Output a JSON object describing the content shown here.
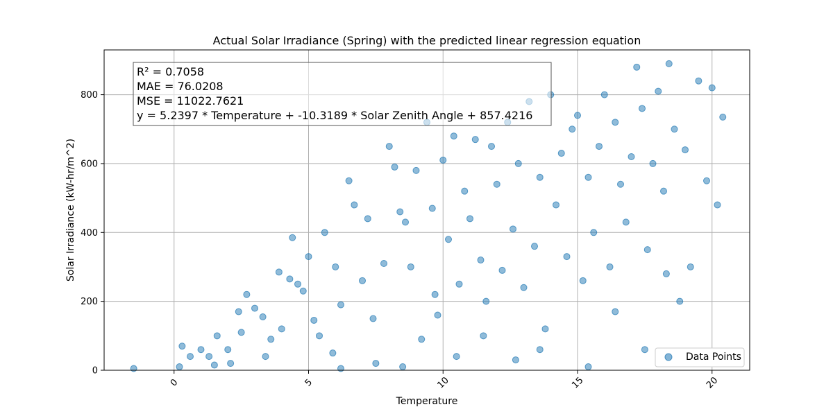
{
  "chart_data": {
    "type": "scatter",
    "title": "Actual Solar Irradiance (Spring) with the predicted linear regression equation",
    "xlabel": "Temperature",
    "ylabel": "Solar Irradiance (kW-hr/m^2)",
    "xlim": [
      -2.6,
      21.4
    ],
    "ylim": [
      0,
      930
    ],
    "xticks": [
      "0",
      "5",
      "10",
      "15",
      "20"
    ],
    "yticks": [
      "0",
      "200",
      "400",
      "600",
      "800"
    ],
    "grid": true,
    "legend_position": "bottom-right",
    "series": [
      {
        "name": "Data Points",
        "color": "#1f77b4",
        "points": [
          [
            -1.5,
            5
          ],
          [
            0.2,
            10
          ],
          [
            0.3,
            70
          ],
          [
            0.6,
            40
          ],
          [
            1.0,
            60
          ],
          [
            1.3,
            40
          ],
          [
            1.5,
            15
          ],
          [
            1.6,
            100
          ],
          [
            2.0,
            60
          ],
          [
            2.1,
            20
          ],
          [
            2.4,
            170
          ],
          [
            2.5,
            110
          ],
          [
            2.7,
            220
          ],
          [
            3.0,
            180
          ],
          [
            3.3,
            155
          ],
          [
            3.6,
            90
          ],
          [
            3.9,
            285
          ],
          [
            4.0,
            120
          ],
          [
            4.3,
            265
          ],
          [
            4.4,
            385
          ],
          [
            4.6,
            250
          ],
          [
            4.8,
            230
          ],
          [
            5.0,
            330
          ],
          [
            5.2,
            145
          ],
          [
            5.4,
            100
          ],
          [
            5.6,
            400
          ],
          [
            5.9,
            50
          ],
          [
            6.0,
            300
          ],
          [
            6.2,
            190
          ],
          [
            6.5,
            550
          ],
          [
            6.7,
            480
          ],
          [
            7.0,
            260
          ],
          [
            7.2,
            440
          ],
          [
            7.5,
            20
          ],
          [
            7.8,
            310
          ],
          [
            8.0,
            650
          ],
          [
            8.2,
            590
          ],
          [
            8.4,
            460
          ],
          [
            8.6,
            430
          ],
          [
            8.8,
            300
          ],
          [
            9.0,
            580
          ],
          [
            9.2,
            90
          ],
          [
            9.4,
            720
          ],
          [
            9.6,
            470
          ],
          [
            9.8,
            160
          ],
          [
            10.0,
            610
          ],
          [
            10.2,
            380
          ],
          [
            10.4,
            680
          ],
          [
            10.6,
            250
          ],
          [
            10.8,
            520
          ],
          [
            11.0,
            440
          ],
          [
            11.2,
            670
          ],
          [
            11.4,
            320
          ],
          [
            11.6,
            200
          ],
          [
            11.8,
            650
          ],
          [
            12.0,
            540
          ],
          [
            12.2,
            290
          ],
          [
            12.4,
            720
          ],
          [
            12.6,
            410
          ],
          [
            12.8,
            600
          ],
          [
            13.0,
            240
          ],
          [
            13.2,
            780
          ],
          [
            13.4,
            360
          ],
          [
            13.6,
            560
          ],
          [
            13.8,
            120
          ],
          [
            14.0,
            800
          ],
          [
            14.2,
            480
          ],
          [
            14.4,
            630
          ],
          [
            14.6,
            330
          ],
          [
            14.8,
            700
          ],
          [
            15.0,
            740
          ],
          [
            15.2,
            260
          ],
          [
            15.4,
            560
          ],
          [
            15.6,
            400
          ],
          [
            15.8,
            650
          ],
          [
            16.0,
            800
          ],
          [
            16.2,
            300
          ],
          [
            16.4,
            720
          ],
          [
            16.6,
            540
          ],
          [
            16.8,
            430
          ],
          [
            17.0,
            620
          ],
          [
            17.2,
            880
          ],
          [
            17.4,
            760
          ],
          [
            17.6,
            350
          ],
          [
            17.8,
            600
          ],
          [
            18.0,
            810
          ],
          [
            18.2,
            520
          ],
          [
            18.4,
            890
          ],
          [
            18.6,
            700
          ],
          [
            18.8,
            200
          ],
          [
            19.0,
            640
          ],
          [
            19.2,
            300
          ],
          [
            19.5,
            840
          ],
          [
            19.8,
            550
          ],
          [
            20.0,
            820
          ],
          [
            20.2,
            480
          ],
          [
            20.4,
            735
          ],
          [
            17.5,
            60
          ],
          [
            15.4,
            10
          ],
          [
            12.7,
            30
          ],
          [
            8.5,
            10
          ],
          [
            10.5,
            40
          ],
          [
            6.2,
            5
          ],
          [
            3.4,
            40
          ],
          [
            7.4,
            150
          ],
          [
            9.7,
            220
          ],
          [
            11.5,
            100
          ],
          [
            13.6,
            60
          ],
          [
            16.4,
            170
          ],
          [
            18.3,
            280
          ]
        ]
      }
    ],
    "annotation": {
      "lines": [
        "R² = 0.7058",
        "MAE = 76.0208",
        "MSE = 11022.7621",
        "y = 5.2397 * Temperature + -10.3189 * Solar Zenith Angle + 857.4216"
      ]
    }
  }
}
